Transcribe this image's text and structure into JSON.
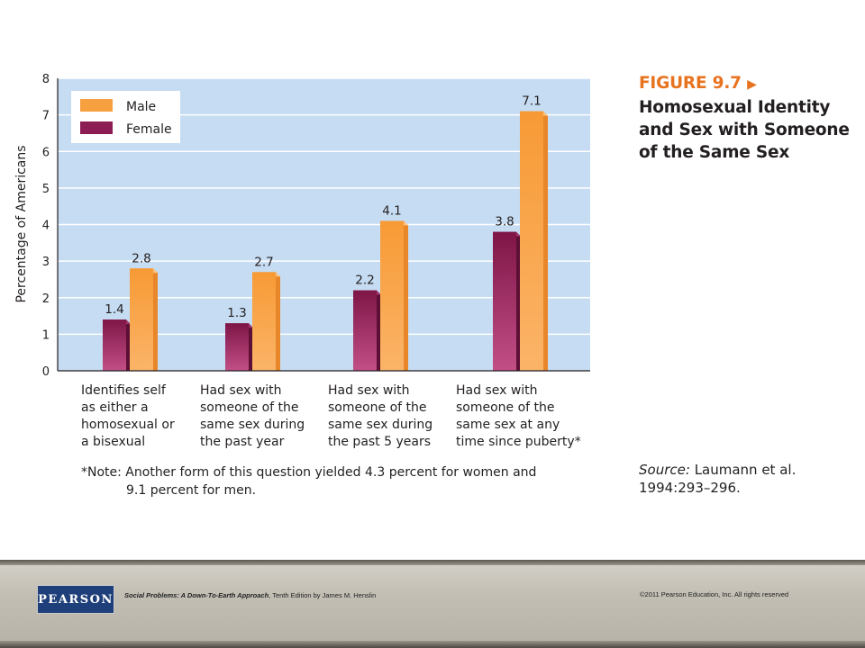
{
  "figure": {
    "number": "FIGURE 9.7",
    "arrow": "▶",
    "title": "Homosexual Identity and Sex with Someone of the Same Sex"
  },
  "chart_data": {
    "type": "bar",
    "categories": [
      "Identifies self as either a homosexual or a bisexual",
      "Had sex with someone of the same sex during the past year",
      "Had sex with someone of the same sex during the past 5 years",
      "Had sex with someone of the same sex at any time since puberty*"
    ],
    "category_lines": [
      "Identifies self\nas either a\nhomosexual or\na bisexual",
      "Had sex with\nsomeone of the\nsame sex during\nthe past year",
      "Had sex with\nsomeone of the\nsame sex during\nthe past 5 years",
      "Had sex with\nsomeone of the\nsame sex at any\ntime since puberty*"
    ],
    "series": [
      {
        "name": "Female",
        "values": [
          1.4,
          1.3,
          2.2,
          3.8
        ],
        "value_labels": [
          "1.4",
          "1.3",
          "2.2",
          "3.8"
        ],
        "color": "#8c1d54"
      },
      {
        "name": "Male",
        "values": [
          2.8,
          2.7,
          4.1,
          7.1
        ],
        "value_labels": [
          "2.8",
          "2.7",
          "4.1",
          "7.1"
        ],
        "color": "#f7a040"
      }
    ],
    "legend": [
      {
        "name": "Male",
        "color": "#f7a040"
      },
      {
        "name": "Female",
        "color": "#8c1d54"
      }
    ],
    "legend_position": "top-left",
    "ylabel": "Percentage of Americans",
    "ylim": [
      0,
      8
    ],
    "yticks": [
      "0",
      "1",
      "2",
      "3",
      "4",
      "5",
      "6",
      "7",
      "8"
    ],
    "grid": true,
    "plot_background": "#c6dcf2"
  },
  "note": {
    "line1": "*Note: Another form of this question yielded 4.3 percent for women and",
    "line2": "9.1 percent for men."
  },
  "source": {
    "label": "Source:",
    "text": "Laumann et al. 1994:293–296."
  },
  "footer": {
    "logo": "PEARSON",
    "book_title": "Social Problems: A Down-To-Earth Approach",
    "book_rest": ", Tenth Edition by James M. Henslin",
    "copyright": "©2011 Pearson Education, Inc.  All rights reserved"
  }
}
